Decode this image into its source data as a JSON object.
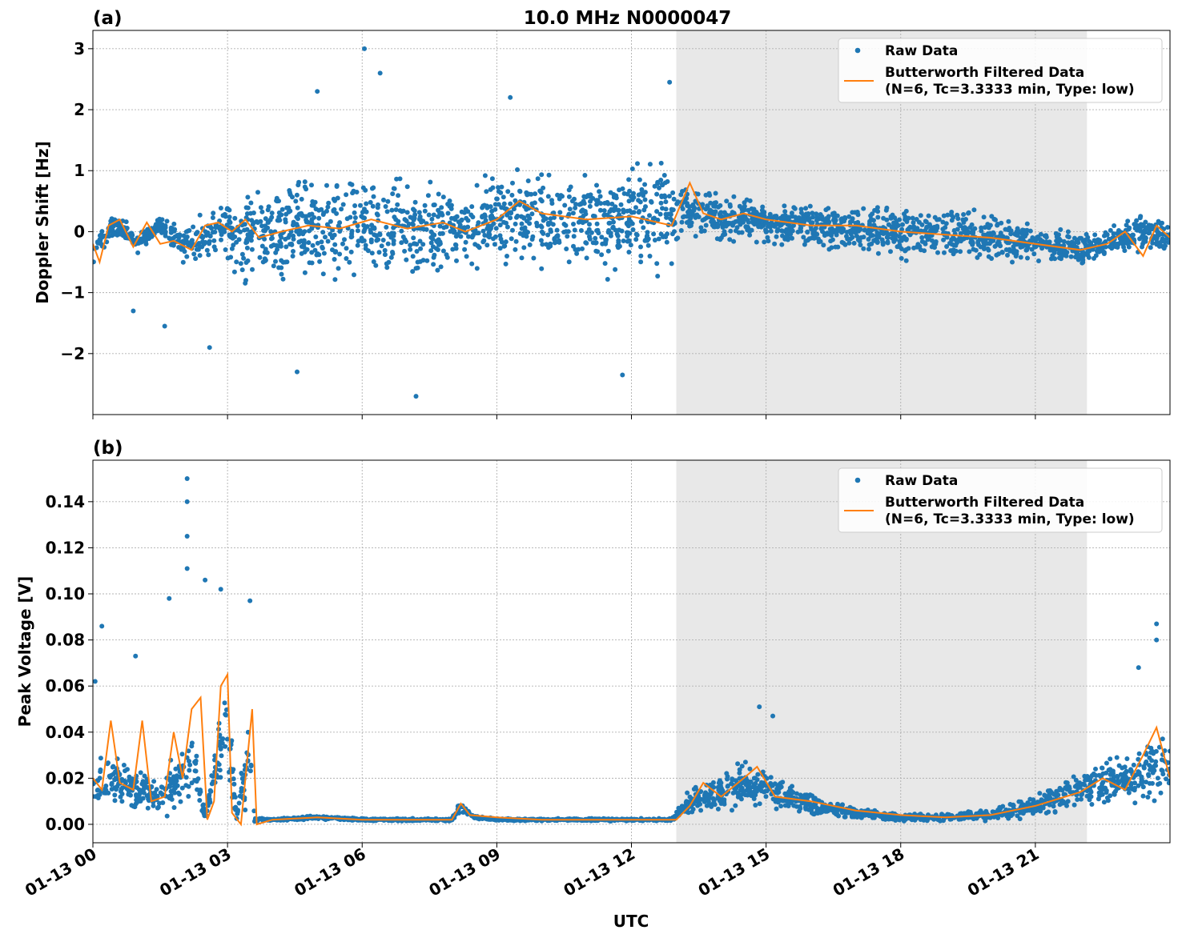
{
  "title": "10.0 MHz N0000047",
  "xlabel": "UTC",
  "colors": {
    "raw": "#1f77b4",
    "filtered": "#ff7f0e",
    "shade": "#e8e8e8",
    "grid": "#b0b0b0",
    "legend_border": "#cccccc"
  },
  "legend": {
    "raw_label": "Raw Data",
    "filtered_label_line1": "Butterworth Filtered Data",
    "filtered_label_line2": "(N=6, Tc=3.3333 min, Type: low)"
  },
  "chart_data": [
    {
      "type": "scatter",
      "panel_label": "(a)",
      "title": "10.0 MHz N0000047",
      "ylabel": "Doppler Shift [Hz]",
      "xlabel": "UTC",
      "x_unit": "hours since 01-13 00:00 UTC",
      "xlim": [
        0,
        24
      ],
      "ylim": [
        -3.0,
        3.3
      ],
      "x_ticks": [
        0,
        3,
        6,
        9,
        12,
        15,
        18,
        21
      ],
      "x_tick_labels": [
        "01-13 00",
        "01-13 03",
        "01-13 06",
        "01-13 09",
        "01-13 12",
        "01-13 15",
        "01-13 18",
        "01-13 21"
      ],
      "y_ticks": [
        -2,
        -1,
        0,
        1,
        2,
        3
      ],
      "y_tick_labels": [
        "−2",
        "−1",
        "0",
        "1",
        "2",
        "3"
      ],
      "shaded_region": [
        13.0,
        22.15
      ],
      "grid": true,
      "legend_placement": "top-right",
      "series": [
        {
          "name": "Raw Data",
          "style": "points",
          "x": [
            0,
            0.5,
            1.0,
            1.5,
            2.0,
            2.5,
            2.9,
            3.25,
            3.6,
            4.0,
            5.0,
            6.0,
            7.0,
            8.0,
            8.2,
            8.5,
            9.0,
            10.0,
            11.0,
            12.0,
            12.9,
            13.2,
            13.6,
            14.0,
            15.0,
            16.0,
            17.0,
            18.0,
            19.0,
            20.0,
            21.0,
            22.0,
            22.5,
            23.0,
            23.5,
            24.0
          ],
          "y_center": [
            -0.3,
            0.15,
            -0.2,
            0.1,
            -0.2,
            -0.1,
            0.2,
            -0.2,
            0.05,
            0.0,
            0.05,
            0.1,
            0.0,
            0.05,
            0.1,
            0.0,
            0.3,
            0.2,
            0.15,
            0.2,
            0.3,
            0.4,
            0.3,
            0.2,
            0.15,
            0.1,
            0.05,
            0.0,
            -0.05,
            -0.1,
            -0.2,
            -0.3,
            -0.2,
            -0.1,
            0.0,
            -0.1
          ],
          "y_spread": [
            0.35,
            0.25,
            0.2,
            0.2,
            0.35,
            0.6,
            0.5,
            0.9,
            0.9,
            1.0,
            1.1,
            1.1,
            1.1,
            1.0,
            0.6,
            0.9,
            1.0,
            1.0,
            1.0,
            1.1,
            1.0,
            0.5,
            0.5,
            0.45,
            0.4,
            0.45,
            0.5,
            0.55,
            0.55,
            0.5,
            0.4,
            0.35,
            0.3,
            0.3,
            0.35,
            0.3
          ],
          "outliers": [
            [
              6.05,
              3.0
            ],
            [
              6.4,
              2.6
            ],
            [
              5.0,
              2.3
            ],
            [
              9.3,
              2.2
            ],
            [
              12.85,
              2.45
            ],
            [
              7.2,
              -2.7
            ],
            [
              4.55,
              -2.3
            ],
            [
              11.8,
              -2.35
            ],
            [
              2.6,
              -1.9
            ],
            [
              1.6,
              -1.55
            ],
            [
              0.9,
              -1.3
            ]
          ]
        },
        {
          "name": "Butterworth Filtered Data",
          "style": "line",
          "x": [
            0,
            0.15,
            0.35,
            0.6,
            0.9,
            1.2,
            1.5,
            1.8,
            2.2,
            2.5,
            2.8,
            3.1,
            3.4,
            3.7,
            4.2,
            4.8,
            5.5,
            6.2,
            7.0,
            7.8,
            8.3,
            9.0,
            9.5,
            10.0,
            11.0,
            12.0,
            12.9,
            13.3,
            13.6,
            14.0,
            14.5,
            15.0,
            16.0,
            17.0,
            18.0,
            19.0,
            20.0,
            21.0,
            22.0,
            22.6,
            23.0,
            23.4,
            23.7,
            24.0
          ],
          "y": [
            -0.2,
            -0.5,
            0.1,
            0.2,
            -0.25,
            0.15,
            -0.2,
            -0.15,
            -0.3,
            0.1,
            0.15,
            0.0,
            0.2,
            -0.1,
            0.0,
            0.1,
            0.05,
            0.2,
            0.05,
            0.15,
            0.0,
            0.2,
            0.5,
            0.3,
            0.2,
            0.25,
            0.1,
            0.8,
            0.3,
            0.2,
            0.3,
            0.2,
            0.1,
            0.1,
            0.0,
            -0.05,
            -0.1,
            -0.2,
            -0.3,
            -0.2,
            0.0,
            -0.4,
            0.1,
            -0.1
          ]
        }
      ]
    },
    {
      "type": "scatter",
      "panel_label": "(b)",
      "ylabel": "Peak Voltage [V]",
      "xlabel": "UTC",
      "x_unit": "hours since 01-13 00:00 UTC",
      "xlim": [
        0,
        24
      ],
      "ylim": [
        -0.008,
        0.158
      ],
      "x_ticks": [
        0,
        3,
        6,
        9,
        12,
        15,
        18,
        21
      ],
      "x_tick_labels": [
        "01-13 00",
        "01-13 03",
        "01-13 06",
        "01-13 09",
        "01-13 12",
        "01-13 15",
        "01-13 18",
        "01-13 21"
      ],
      "y_ticks": [
        0.0,
        0.02,
        0.04,
        0.06,
        0.08,
        0.1,
        0.12,
        0.14
      ],
      "y_tick_labels": [
        "0.00",
        "0.02",
        "0.04",
        "0.06",
        "0.08",
        "0.10",
        "0.12",
        "0.14"
      ],
      "shaded_region": [
        13.0,
        22.15
      ],
      "grid": true,
      "legend_placement": "top-right",
      "series": [
        {
          "name": "Raw Data",
          "style": "points",
          "x": [
            0,
            0.5,
            1.0,
            1.5,
            1.9,
            2.2,
            2.5,
            2.8,
            3.0,
            3.2,
            3.5,
            3.6,
            4.0,
            5.0,
            6.0,
            7.0,
            8.0,
            8.2,
            8.5,
            9.0,
            10.0,
            11.0,
            12.0,
            12.9,
            13.3,
            14.0,
            14.5,
            15.0,
            16.0,
            17.0,
            18.0,
            19.0,
            20.0,
            21.0,
            22.0,
            23.0,
            24.0
          ],
          "center": [
            0.018,
            0.02,
            0.015,
            0.012,
            0.018,
            0.03,
            0.003,
            0.03,
            0.04,
            0.003,
            0.035,
            0.002,
            0.002,
            0.003,
            0.002,
            0.002,
            0.002,
            0.008,
            0.003,
            0.002,
            0.002,
            0.002,
            0.002,
            0.002,
            0.01,
            0.015,
            0.017,
            0.015,
            0.008,
            0.005,
            0.003,
            0.003,
            0.004,
            0.008,
            0.015,
            0.02,
            0.025
          ],
          "spread": [
            0.012,
            0.012,
            0.012,
            0.01,
            0.015,
            0.02,
            0.002,
            0.02,
            0.03,
            0.002,
            0.03,
            0.001,
            0.0007,
            0.001,
            0.0007,
            0.0007,
            0.0007,
            0.004,
            0.001,
            0.0007,
            0.0007,
            0.0007,
            0.0007,
            0.0007,
            0.008,
            0.01,
            0.012,
            0.01,
            0.006,
            0.003,
            0.002,
            0.002,
            0.003,
            0.006,
            0.01,
            0.014,
            0.018
          ],
          "outliers": [
            [
              2.1,
              0.15
            ],
            [
              2.1,
              0.14
            ],
            [
              2.1,
              0.125
            ],
            [
              2.1,
              0.111
            ],
            [
              2.5,
              0.106
            ],
            [
              2.85,
              0.102
            ],
            [
              3.5,
              0.097
            ],
            [
              1.7,
              0.098
            ],
            [
              0.2,
              0.086
            ],
            [
              0.95,
              0.073
            ],
            [
              14.85,
              0.051
            ],
            [
              15.15,
              0.047
            ],
            [
              23.7,
              0.087
            ],
            [
              23.7,
              0.08
            ],
            [
              23.3,
              0.068
            ],
            [
              0.05,
              0.062
            ]
          ]
        },
        {
          "name": "Butterworth Filtered Data",
          "style": "line",
          "x": [
            0,
            0.2,
            0.4,
            0.6,
            0.9,
            1.1,
            1.3,
            1.6,
            1.8,
            2.0,
            2.2,
            2.4,
            2.55,
            2.7,
            2.85,
            3.0,
            3.1,
            3.3,
            3.45,
            3.55,
            3.65,
            4.0,
            5.0,
            6.0,
            7.0,
            8.0,
            8.2,
            8.4,
            9.0,
            10.0,
            11.0,
            12.0,
            13.0,
            13.3,
            13.6,
            14.0,
            14.5,
            14.8,
            15.2,
            16.0,
            17.0,
            18.0,
            19.0,
            20.0,
            21.0,
            22.0,
            22.5,
            23.0,
            23.4,
            23.7,
            24.0
          ],
          "y": [
            0.02,
            0.015,
            0.045,
            0.018,
            0.015,
            0.045,
            0.01,
            0.012,
            0.04,
            0.02,
            0.05,
            0.055,
            0.002,
            0.01,
            0.06,
            0.065,
            0.005,
            0.0,
            0.03,
            0.05,
            0.0,
            0.002,
            0.003,
            0.002,
            0.002,
            0.002,
            0.009,
            0.004,
            0.003,
            0.002,
            0.002,
            0.002,
            0.002,
            0.008,
            0.018,
            0.012,
            0.02,
            0.025,
            0.012,
            0.01,
            0.006,
            0.004,
            0.003,
            0.004,
            0.008,
            0.014,
            0.02,
            0.015,
            0.03,
            0.042,
            0.02
          ]
        }
      ]
    }
  ]
}
